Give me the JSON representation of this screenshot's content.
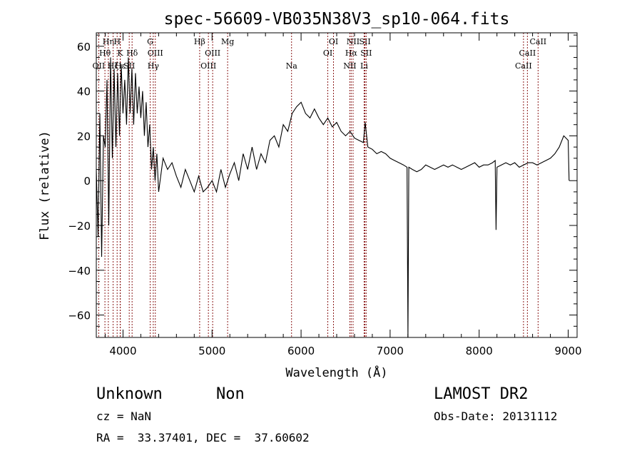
{
  "chart_data": {
    "type": "line",
    "title": "spec-56609-VB035N38V3_sp10-064.fits",
    "xlabel": "Wavelength (Å)",
    "ylabel": "Flux (relative)",
    "xlim": [
      3700,
      9100
    ],
    "ylim": [
      -70,
      66
    ],
    "xticks": [
      4000,
      5000,
      6000,
      7000,
      8000,
      9000
    ],
    "yticks": [
      -60,
      -40,
      -20,
      0,
      20,
      40,
      60
    ],
    "xtick_labels": [
      "4000",
      "5000",
      "6000",
      "7000",
      "8000",
      "9000"
    ],
    "ytick_labels": [
      "−60",
      "−40",
      "−20",
      "0",
      "20",
      "40",
      "60"
    ],
    "grid": false,
    "line_color": "#000000",
    "marker_color": "#8b1a1a",
    "spectrum": {
      "x": [
        3700,
        3720,
        3740,
        3760,
        3780,
        3800,
        3820,
        3840,
        3860,
        3880,
        3900,
        3920,
        3940,
        3960,
        3980,
        4000,
        4020,
        4040,
        4060,
        4080,
        4100,
        4120,
        4140,
        4160,
        4180,
        4200,
        4220,
        4240,
        4260,
        4280,
        4300,
        4320,
        4340,
        4360,
        4380,
        4400,
        4450,
        4500,
        4550,
        4600,
        4650,
        4700,
        4750,
        4800,
        4850,
        4900,
        4950,
        5000,
        5050,
        5100,
        5150,
        5200,
        5250,
        5300,
        5350,
        5400,
        5450,
        5500,
        5550,
        5600,
        5650,
        5700,
        5750,
        5800,
        5850,
        5900,
        5950,
        6000,
        6050,
        6100,
        6150,
        6200,
        6250,
        6300,
        6350,
        6400,
        6450,
        6500,
        6550,
        6600,
        6650,
        6700,
        6720,
        6750,
        6800,
        6850,
        6900,
        6950,
        7000,
        7050,
        7100,
        7150,
        7190,
        7200,
        7210,
        7250,
        7300,
        7350,
        7400,
        7450,
        7500,
        7550,
        7600,
        7650,
        7700,
        7750,
        7800,
        7850,
        7900,
        7950,
        8000,
        8050,
        8100,
        8150,
        8180,
        8190,
        8200,
        8250,
        8300,
        8350,
        8400,
        8450,
        8500,
        8550,
        8600,
        8650,
        8700,
        8750,
        8800,
        8850,
        8900,
        8950,
        9000,
        9010
      ],
      "y": [
        5,
        -25,
        30,
        -34,
        20,
        15,
        45,
        -20,
        55,
        10,
        50,
        15,
        48,
        20,
        52,
        30,
        45,
        25,
        55,
        30,
        50,
        25,
        48,
        30,
        42,
        28,
        40,
        20,
        35,
        15,
        25,
        5,
        15,
        0,
        12,
        -5,
        10,
        5,
        8,
        2,
        -3,
        5,
        0,
        -5,
        2,
        -5,
        -3,
        0,
        -5,
        5,
        -3,
        3,
        8,
        0,
        12,
        5,
        15,
        5,
        12,
        8,
        18,
        20,
        15,
        25,
        22,
        30,
        33,
        35,
        30,
        28,
        32,
        28,
        25,
        28,
        24,
        26,
        22,
        20,
        22,
        19,
        18,
        17,
        26,
        15,
        14,
        12,
        13,
        12,
        10,
        9,
        8,
        7,
        6,
        -70,
        6,
        5,
        4,
        5,
        7,
        6,
        5,
        6,
        7,
        6,
        7,
        6,
        5,
        6,
        7,
        8,
        6,
        7,
        7,
        8,
        9,
        -22,
        6,
        7,
        8,
        7,
        8,
        6,
        7,
        8,
        8,
        7,
        8,
        9,
        10,
        12,
        15,
        20,
        18,
        0
      ]
    },
    "line_markers": [
      {
        "label": "Hη",
        "wavelength": 3835,
        "row": 1
      },
      {
        "label": "H",
        "wavelength": 3934,
        "row": 1
      },
      {
        "label": "Hθ",
        "wavelength": 3797,
        "row": 2
      },
      {
        "label": "K",
        "wavelength": 3968,
        "row": 2
      },
      {
        "label": "Hδ",
        "wavelength": 4102,
        "row": 2
      },
      {
        "label": "OII",
        "wavelength": 3727,
        "row": 3
      },
      {
        "label": "Hζ",
        "wavelength": 3889,
        "row": 3
      },
      {
        "label": "Hε",
        "wavelength": 3970,
        "row": 3
      },
      {
        "label": "SII",
        "wavelength": 4070,
        "row": 3
      },
      {
        "label": "G",
        "wavelength": 4305,
        "row": 1
      },
      {
        "label": "OIII",
        "wavelength": 4363,
        "row": 2
      },
      {
        "label": "Hγ",
        "wavelength": 4340,
        "row": 3
      },
      {
        "label": "Hβ",
        "wavelength": 4861,
        "row": 1
      },
      {
        "label": "OIII",
        "wavelength": 5007,
        "row": 2
      },
      {
        "label": "OIII",
        "wavelength": 4959,
        "row": 3
      },
      {
        "label": "Mg",
        "wavelength": 5175,
        "row": 1
      },
      {
        "label": "Na",
        "wavelength": 5893,
        "row": 3
      },
      {
        "label": "OI",
        "wavelength": 6364,
        "row": 1
      },
      {
        "label": "OI",
        "wavelength": 6300,
        "row": 2
      },
      {
        "label": "NII",
        "wavelength": 6584,
        "row": 1
      },
      {
        "label": "SII",
        "wavelength": 6717,
        "row": 1
      },
      {
        "label": "Hα",
        "wavelength": 6563,
        "row": 2
      },
      {
        "label": "SII",
        "wavelength": 6731,
        "row": 2
      },
      {
        "label": "NII",
        "wavelength": 6548,
        "row": 3
      },
      {
        "label": "Li",
        "wavelength": 6708,
        "row": 3
      },
      {
        "label": "CaII",
        "wavelength": 8662,
        "row": 1
      },
      {
        "label": "CaII",
        "wavelength": 8542,
        "row": 2
      },
      {
        "label": "CaII",
        "wavelength": 8498,
        "row": 3
      }
    ]
  },
  "info": {
    "object_class": "Unknown",
    "object_subclass": "Non",
    "survey": "LAMOST DR2",
    "cz": "cz = NaN",
    "obs_date": "Obs-Date: 20131112",
    "radec": "RA =  33.37401, DEC =  37.60602"
  }
}
